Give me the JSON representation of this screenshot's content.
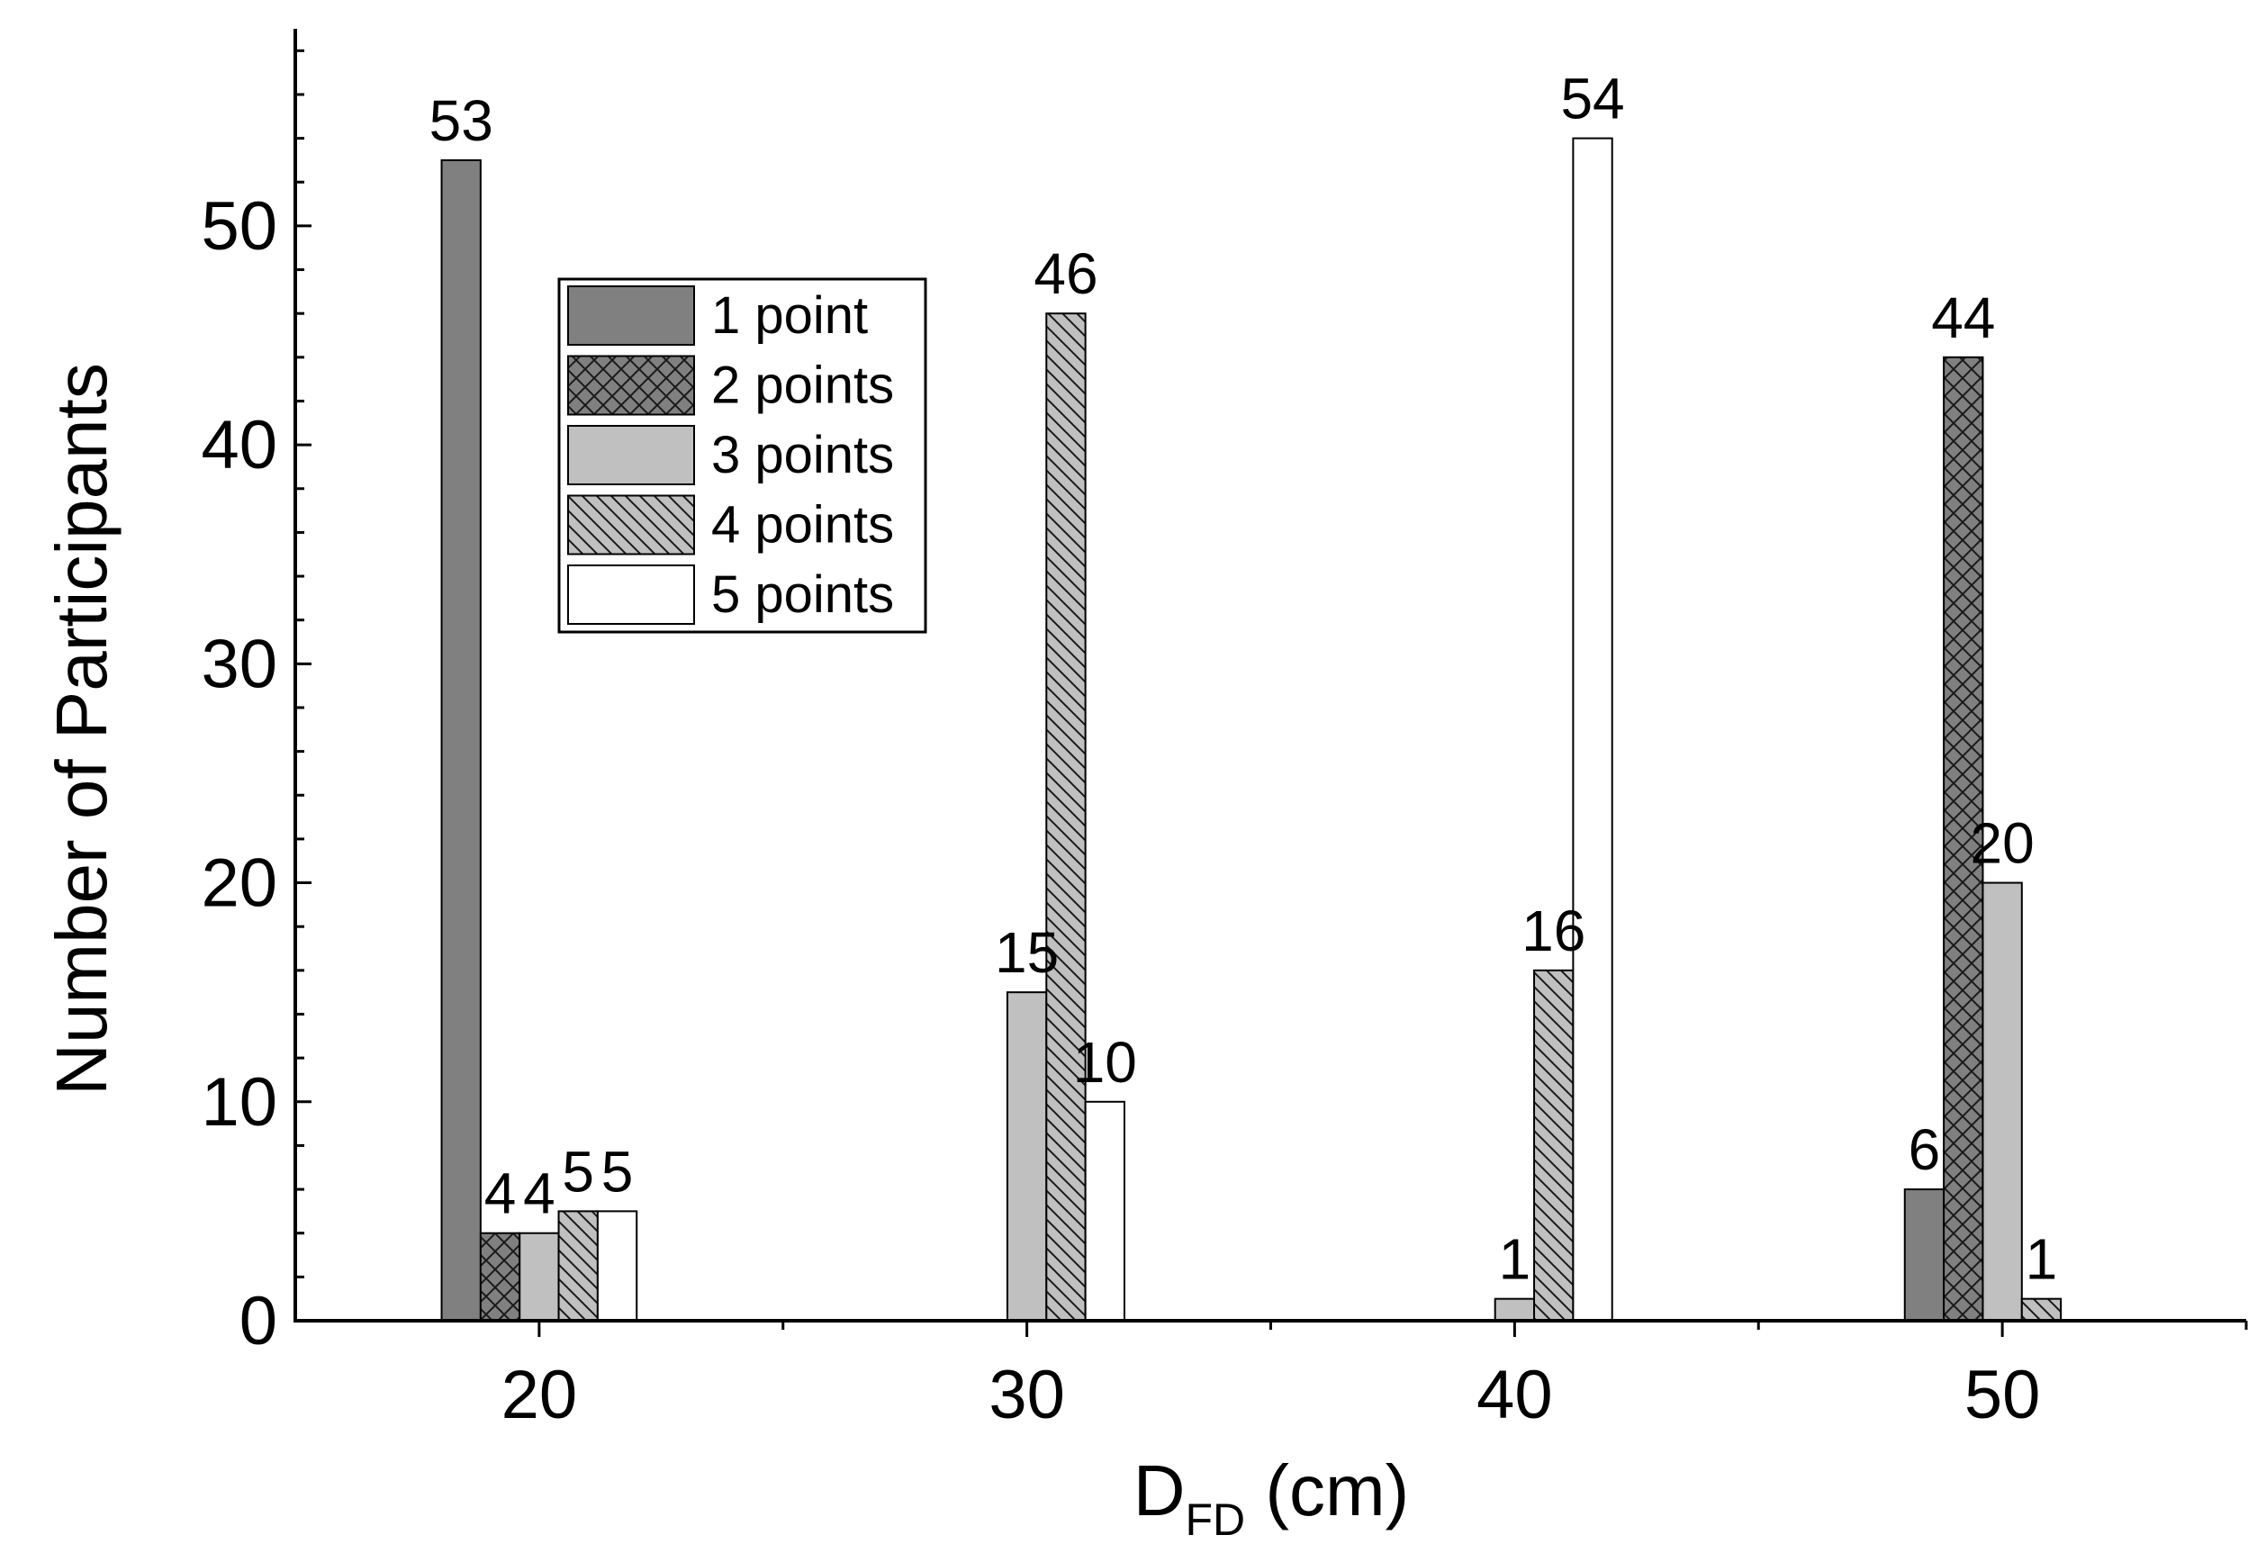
{
  "chart_data": {
    "type": "bar",
    "xlabel_main": "D",
    "xlabel_sub": "FD",
    "xlabel_rest": " (cm)",
    "ylabel": "Number of Participants",
    "categories": [
      "20",
      "30",
      "40",
      "50"
    ],
    "x": [
      20,
      30,
      40,
      50
    ],
    "xlim": [
      15,
      55
    ],
    "ylim": [
      0,
      59
    ],
    "yticks": [
      0,
      10,
      20,
      30,
      40,
      50
    ],
    "series": [
      {
        "name": "1 point",
        "values": [
          53,
          0,
          0,
          6
        ],
        "labels": [
          "53",
          "",
          "",
          "6"
        ],
        "fill": "#808080",
        "pattern": "none"
      },
      {
        "name": "2 points",
        "values": [
          4,
          0,
          0,
          44
        ],
        "labels": [
          "4",
          "",
          "",
          "44"
        ],
        "fill": "#808080",
        "pattern": "crosshatch"
      },
      {
        "name": "3 points",
        "values": [
          4,
          15,
          1,
          20
        ],
        "labels": [
          "4",
          "15",
          "1",
          "20"
        ],
        "fill": "#c0c0c0",
        "pattern": "none"
      },
      {
        "name": "4 points",
        "values": [
          5,
          46,
          16,
          1
        ],
        "labels": [
          "5",
          "46",
          "16",
          "1"
        ],
        "fill": "#c0c0c0",
        "pattern": "diagonal"
      },
      {
        "name": "5 points",
        "values": [
          5,
          10,
          54,
          0
        ],
        "labels": [
          "5",
          "10",
          "54",
          ""
        ],
        "fill": "#ffffff",
        "pattern": "none"
      }
    ],
    "legend_position": "top-left, inside plot area",
    "grid": false
  }
}
